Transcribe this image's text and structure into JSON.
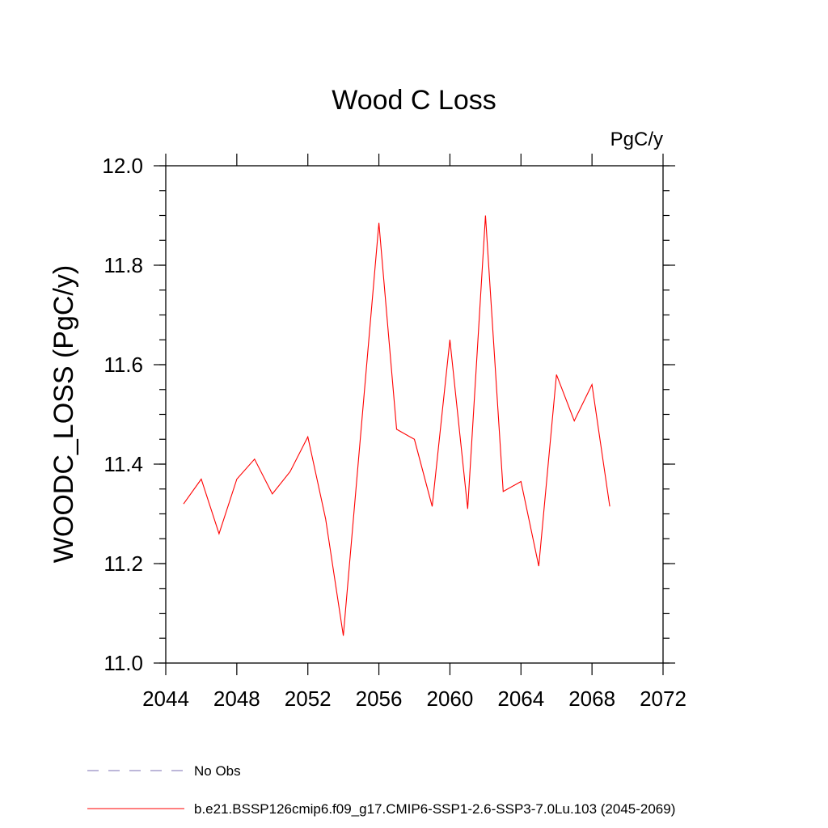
{
  "chart_data": {
    "type": "line",
    "title": "Wood C Loss",
    "units_label": "PgC/y",
    "ylabel": "WOODC_LOSS  (PgC/y)",
    "xlabel": "",
    "xlim": [
      2044,
      2072
    ],
    "ylim": [
      11.0,
      12.0
    ],
    "x_ticks": [
      2044,
      2048,
      2052,
      2056,
      2060,
      2064,
      2068,
      2072
    ],
    "x_tick_labels": [
      "2044",
      "2048",
      "2052",
      "2056",
      "2060",
      "2064",
      "2068",
      "2072"
    ],
    "y_ticks": [
      11.0,
      11.2,
      11.4,
      11.6,
      11.8,
      12.0
    ],
    "y_tick_labels": [
      "11.0",
      "11.2",
      "11.4",
      "11.6",
      "11.8",
      "12.0"
    ],
    "grid": false,
    "legend_placement": "bottom",
    "series": [
      {
        "name": "b.e21.BSSP126cmip6.f09_g17.CMIP6-SSP1-2.6-SSP3-7.0Lu.103 (2045-2069)",
        "color": "#ff0000",
        "x": [
          2045,
          2046,
          2047,
          2048,
          2049,
          2050,
          2051,
          2052,
          2053,
          2054,
          2055,
          2056,
          2057,
          2058,
          2059,
          2060,
          2061,
          2062,
          2063,
          2064,
          2065,
          2066,
          2067,
          2068,
          2069
        ],
        "values": [
          11.32,
          11.37,
          11.26,
          11.37,
          11.41,
          11.34,
          11.385,
          11.455,
          11.29,
          11.055,
          11.47,
          11.885,
          11.47,
          11.45,
          11.315,
          11.65,
          11.31,
          11.9,
          11.345,
          11.365,
          11.195,
          11.58,
          11.487,
          11.56,
          11.315
        ]
      }
    ],
    "legend": [
      {
        "label": "No Obs",
        "color": "#7b6fb3",
        "dash": true
      },
      {
        "label": "b.e21.BSSP126cmip6.f09_g17.CMIP6-SSP1-2.6-SSP3-7.0Lu.103 (2045-2069)",
        "color": "#ff0000",
        "dash": false
      }
    ]
  }
}
